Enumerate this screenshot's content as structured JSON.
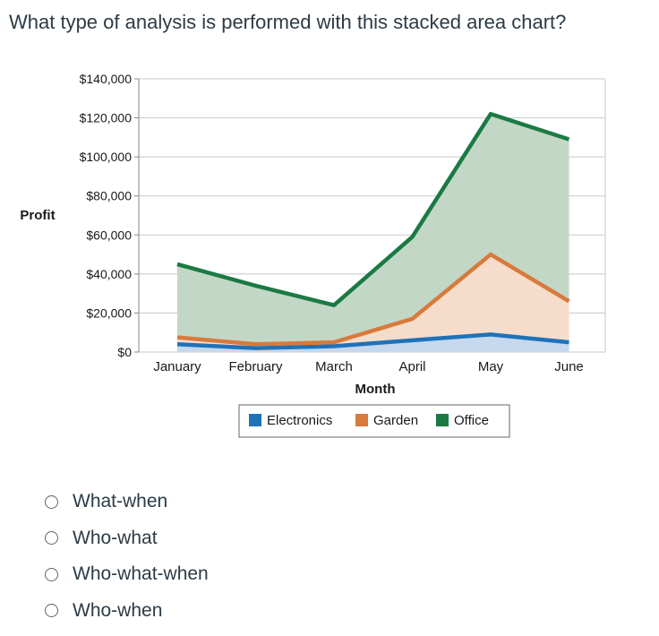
{
  "question": {
    "text": "What type of analysis is performed with this stacked area chart?"
  },
  "chart_data": {
    "type": "area",
    "stacked": true,
    "ylabel": "Profit",
    "xlabel": "Month",
    "categories": [
      "January",
      "February",
      "March",
      "April",
      "May",
      "June"
    ],
    "ylim": [
      0,
      140000
    ],
    "yticks": [
      0,
      20000,
      40000,
      60000,
      80000,
      100000,
      120000,
      140000
    ],
    "ytick_labels": [
      "$0",
      "$20,000",
      "$40,000",
      "$60,000",
      "$80,000",
      "$100,000",
      "$120,000",
      "$140,000"
    ],
    "grid": true,
    "legend_position": "bottom",
    "series": [
      {
        "name": "Electronics",
        "values": [
          4000,
          2000,
          3000,
          6000,
          9000,
          5000
        ],
        "color": "#1f72b8",
        "fill": "#c5d8ee"
      },
      {
        "name": "Garden",
        "values": [
          3500,
          2000,
          2000,
          11000,
          41000,
          21000
        ],
        "color": "#d77a3c",
        "fill": "#f6dccb"
      },
      {
        "name": "Office",
        "values": [
          37500,
          30000,
          19000,
          42000,
          72000,
          83000
        ],
        "color": "#1a7a43",
        "fill": "#c3d7c6"
      }
    ]
  },
  "options": [
    {
      "label": "What-when"
    },
    {
      "label": "Who-what"
    },
    {
      "label": "Who-what-when"
    },
    {
      "label": "Who-when"
    }
  ]
}
